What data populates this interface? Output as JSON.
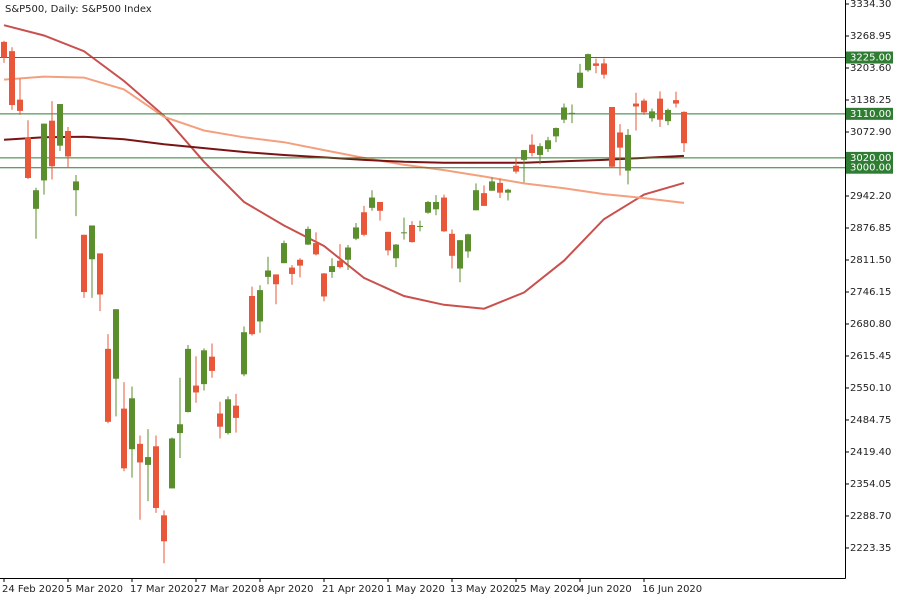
{
  "chart_data": {
    "type": "candlestick",
    "title": "S&P500, Daily:  S&P500 Index",
    "categories": [
      "24 Feb 2020",
      null,
      null,
      null,
      null,
      null,
      null,
      null,
      "5 Mar 2020",
      null,
      null,
      null,
      null,
      null,
      null,
      null,
      "17 Mar 2020",
      null,
      null,
      null,
      null,
      null,
      null,
      null,
      "27 Mar 2020",
      null,
      null,
      null,
      null,
      null,
      null,
      null,
      "8 Apr 2020",
      null,
      null,
      null,
      null,
      null,
      null,
      null,
      "21 Apr 2020",
      null,
      null,
      null,
      null,
      null,
      null,
      null,
      "1 May 2020",
      null,
      null,
      null,
      null,
      null,
      null,
      null,
      "13 May 2020",
      null,
      null,
      null,
      null,
      null,
      null,
      null,
      "25 May 2020",
      null,
      null,
      null,
      null,
      null,
      null,
      null,
      "4 Jun 2020",
      null,
      null,
      null,
      null,
      null,
      null,
      null,
      "16 Jun 2020",
      null,
      null,
      null,
      null,
      null
    ],
    "open": [
      3257,
      3238,
      3139,
      3062,
      2916,
      2974,
      3096,
      3045,
      3075,
      2954,
      2863,
      2813,
      2825,
      2630,
      2569,
      2508,
      2425,
      2436,
      2393,
      2431,
      2290,
      2345,
      2458,
      2501,
      2555,
      2558,
      2614,
      2498,
      2458,
      2514,
      2578,
      2738,
      2686,
      2777,
      2782,
      2805,
      2796,
      2812,
      2843,
      2846,
      2784,
      2787,
      2810,
      2812,
      2855,
      2909,
      2918,
      2930,
      2869,
      2815,
      2868,
      2883,
      2879,
      2908,
      2915,
      2939,
      2865,
      2794,
      2829,
      2913,
      2948,
      2953,
      2969,
      2949,
      3004,
      3016,
      3047,
      3026,
      3038,
      3064,
      3098,
      3111,
      3163,
      3199,
      3213,
      3213,
      3124,
      3072,
      2994,
      3131,
      3137,
      3101,
      3141,
      3095,
      3138,
      3114
    ],
    "high": [
      3259,
      3246,
      3182,
      3097,
      2959,
      3090,
      3136,
      3130,
      3083,
      2985,
      2863,
      2882,
      2825,
      2660,
      2711,
      2562,
      2553,
      2453,
      2466,
      2453,
      2300,
      2449,
      2571,
      2638,
      2615,
      2631,
      2641,
      2522,
      2533,
      2538,
      2676,
      2757,
      2760,
      2818,
      2782,
      2851,
      2801,
      2815,
      2880,
      2868,
      2785,
      2815,
      2844,
      2842,
      2887,
      2922,
      2954,
      2930,
      2869,
      2844,
      2898,
      2891,
      2892,
      2932,
      2944,
      2945,
      2874,
      2852,
      2865,
      2968,
      2964,
      2980,
      2978,
      2957,
      3021,
      3036,
      3068,
      3050,
      3063,
      3082,
      3131,
      3129,
      3212,
      3233,
      3223,
      3223,
      3124,
      3089,
      3079,
      3153,
      3141,
      3121,
      3156,
      3121,
      3155,
      3115
    ],
    "low": [
      3214,
      3118,
      3108,
      2977,
      2855,
      2945,
      2976,
      3034,
      2999,
      2901,
      2734,
      2734,
      2707,
      2478,
      2492,
      2380,
      2367,
      2281,
      2319,
      2295,
      2192,
      2345,
      2407,
      2500,
      2520,
      2545,
      2571,
      2447,
      2455,
      2459,
      2574,
      2657,
      2663,
      2762,
      2721,
      2805,
      2761,
      2776,
      2842,
      2821,
      2727,
      2775,
      2794,
      2791,
      2852,
      2860,
      2912,
      2892,
      2821,
      2797,
      2853,
      2847,
      2870,
      2906,
      2903,
      2869,
      2794,
      2766,
      2816,
      2913,
      2922,
      2953,
      2938,
      2933,
      2988,
      2970,
      3023,
      3007,
      3032,
      3052,
      3091,
      3091,
      3163,
      3196,
      3193,
      3182,
      2999,
      2984,
      2966,
      3076,
      3108,
      3094,
      3083,
      3087,
      3123,
      3032
    ],
    "close": [
      3225,
      3128,
      3116,
      2979,
      2954,
      3090,
      3003,
      3130,
      3023,
      2972,
      2746,
      2882,
      2741,
      2481,
      2711,
      2386,
      2529,
      2398,
      2409,
      2305,
      2237,
      2447,
      2476,
      2630,
      2541,
      2627,
      2585,
      2471,
      2527,
      2489,
      2664,
      2660,
      2750,
      2790,
      2762,
      2846,
      2783,
      2800,
      2875,
      2823,
      2737,
      2799,
      2797,
      2837,
      2878,
      2863,
      2939,
      2912,
      2831,
      2843,
      2868,
      2848,
      2881,
      2930,
      2930,
      2870,
      2820,
      2852,
      2864,
      2954,
      2922,
      2972,
      2949,
      2955,
      2992,
      3036,
      3030,
      3044,
      3056,
      3081,
      3123,
      3112,
      3194,
      3232,
      3208,
      3190,
      3002,
      3041,
      3067,
      3125,
      3113,
      3115,
      3098,
      3118,
      3131,
      3050
    ],
    "up_color": "#5b8e2c",
    "down_color": "#e8573a",
    "moving_averages": [
      {
        "color": "#c9504d",
        "x": [
          0,
          5,
          10,
          15,
          20,
          25,
          30,
          35,
          40,
          45,
          50,
          55,
          60,
          65,
          70,
          75,
          80,
          85
        ],
        "values": [
          3291,
          3270,
          3238,
          3177,
          3106,
          3012,
          2930,
          2882,
          2840,
          2775,
          2738,
          2720,
          2712,
          2745,
          2810,
          2895,
          2945,
          2969
        ]
      },
      {
        "color": "#f4a07e",
        "x": [
          0,
          5,
          10,
          15,
          20,
          25,
          30,
          35,
          40,
          45,
          50,
          55,
          60,
          65,
          70,
          75,
          80,
          85
        ],
        "values": [
          3180,
          3186,
          3184,
          3160,
          3104,
          3076,
          3062,
          3052,
          3036,
          3020,
          3006,
          2995,
          2982,
          2968,
          2958,
          2946,
          2938,
          2928
        ]
      },
      {
        "color": "#7a1414",
        "x": [
          0,
          5,
          10,
          15,
          20,
          25,
          30,
          35,
          40,
          45,
          50,
          55,
          60,
          65,
          70,
          75,
          80,
          85
        ],
        "values": [
          3057,
          3062,
          3063,
          3058,
          3048,
          3040,
          3032,
          3026,
          3021,
          3016,
          3012,
          3010,
          3010,
          3010,
          3013,
          3016,
          3020,
          3024
        ]
      }
    ],
    "levels": [
      {
        "value": 3225,
        "label": "3225.00"
      },
      {
        "value": 3110,
        "label": "3110.00"
      },
      {
        "value": 3020,
        "label": "3020.00"
      },
      {
        "value": 3000,
        "label": "3000.00"
      }
    ],
    "level_color": "#2e7d32",
    "ylim": [
      2162,
      3342.5
    ],
    "yticks": [
      {
        "value": 3334.3,
        "label": "3334.30"
      },
      {
        "value": 3268.95,
        "label": "3268.95"
      },
      {
        "value": 3203.6,
        "label": "3203.60"
      },
      {
        "value": 3138.25,
        "label": "3138.25"
      },
      {
        "value": 3072.9,
        "label": "3072.90"
      },
      {
        "value": 2942.2,
        "label": "2942.20"
      },
      {
        "value": 2876.85,
        "label": "2876.85"
      },
      {
        "value": 2811.5,
        "label": "2811.50"
      },
      {
        "value": 2746.15,
        "label": "2746.15"
      },
      {
        "value": 2680.8,
        "label": "2680.80"
      },
      {
        "value": 2615.45,
        "label": "2615.45"
      },
      {
        "value": 2550.1,
        "label": "2550.10"
      },
      {
        "value": 2484.75,
        "label": "2484.75"
      },
      {
        "value": 2419.4,
        "label": "2419.40"
      },
      {
        "value": 2354.05,
        "label": "2354.05"
      },
      {
        "value": 2288.7,
        "label": "2288.70"
      },
      {
        "value": 2223.35,
        "label": "2223.35"
      }
    ],
    "grid": false
  }
}
